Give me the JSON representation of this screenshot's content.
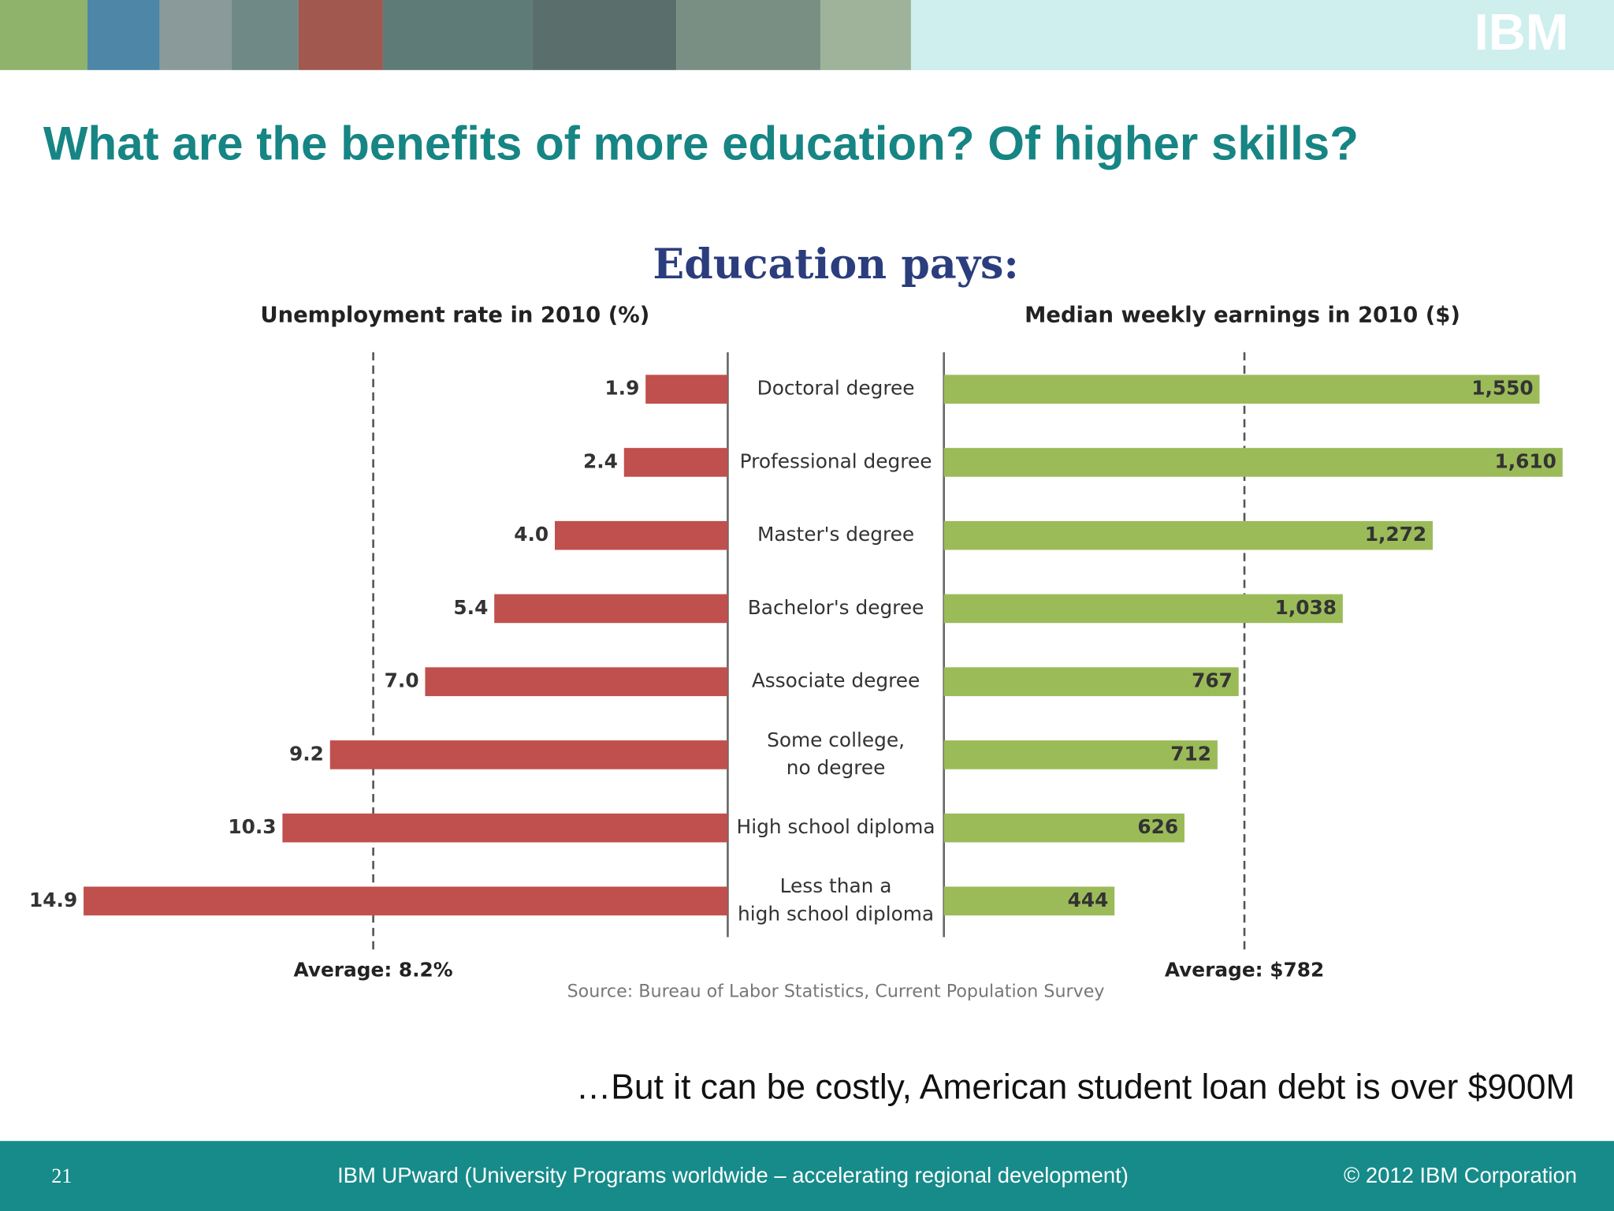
{
  "header": {
    "logo": "IBM"
  },
  "slide_title": "What are the benefits of more education? Of higher skills?",
  "chart_data": {
    "type": "butterfly",
    "title": "Education pays:",
    "categories": [
      "Doctoral degree",
      "Professional degree",
      "Master's degree",
      "Bachelor's degree",
      "Associate degree",
      "Some college,\nno degree",
      "High school diploma",
      "Less than a\nhigh school diploma"
    ],
    "series": [
      {
        "name": "Unemployment rate in 2010 (%)",
        "color": "#c0504d",
        "side": "left",
        "values": [
          1.9,
          2.4,
          4.0,
          5.4,
          7.0,
          9.2,
          10.3,
          14.9
        ],
        "value_labels": [
          "1.9",
          "2.4",
          "4.0",
          "5.4",
          "7.0",
          "9.2",
          "10.3",
          "14.9"
        ],
        "xlim": [
          0,
          15
        ],
        "average": {
          "value": 8.2,
          "label": "Average: 8.2%"
        }
      },
      {
        "name": "Median weekly earnings in 2010 ($)",
        "color": "#9bbb59",
        "side": "right",
        "values": [
          1550,
          1610,
          1272,
          1038,
          767,
          712,
          626,
          444
        ],
        "value_labels": [
          "1,550",
          "1,610",
          "1,272",
          "1,038",
          "767",
          "712",
          "626",
          "444"
        ],
        "xlim": [
          0,
          1650
        ],
        "average": {
          "value": 782,
          "label": "Average: $782"
        }
      }
    ],
    "source": "Source: Bureau of Labor Statistics, Current Population Survey"
  },
  "note": "…But it can be costly, American student loan debt is over $900M",
  "footer": {
    "page": "21",
    "program": "IBM UPward (University Programs worldwide – accelerating regional development)",
    "copyright": "© 2012 IBM Corporation"
  }
}
